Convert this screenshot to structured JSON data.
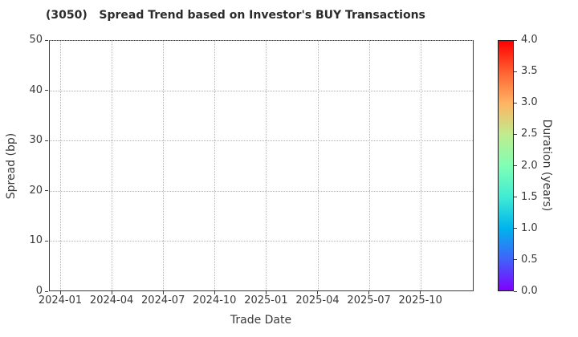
{
  "chart_data": {
    "type": "scatter",
    "title": "(3050)   Spread Trend based on Investor's BUY Transactions",
    "xlabel": "Trade Date",
    "ylabel": "Spread (bp)",
    "x_tick_labels": [
      "2024-01",
      "2024-04",
      "2024-07",
      "2024-10",
      "2025-01",
      "2025-04",
      "2025-07",
      "2025-10"
    ],
    "y_tick_labels": [
      "0",
      "10",
      "20",
      "30",
      "40",
      "50"
    ],
    "ylim": [
      0,
      50
    ],
    "grid": true,
    "grid_style": "dotted",
    "points": [],
    "colorbar": {
      "label": "Duration (years)",
      "tick_labels": [
        "0.0",
        "0.5",
        "1.0",
        "1.5",
        "2.0",
        "2.5",
        "3.0",
        "3.5",
        "4.0"
      ],
      "range": [
        0.0,
        4.0
      ],
      "colormap": "rainbow",
      "gradient_stops": [
        "#8000FF",
        "#4062FA",
        "#00B4EC",
        "#40ECD4",
        "#80FFB4",
        "#BFEC8E",
        "#FFB462",
        "#FF6232",
        "#FF0000"
      ]
    },
    "style": {
      "text_color": "#3a3a3a",
      "spine_color": "#3c3c3c",
      "grid_color": "#b0b0b0"
    }
  }
}
